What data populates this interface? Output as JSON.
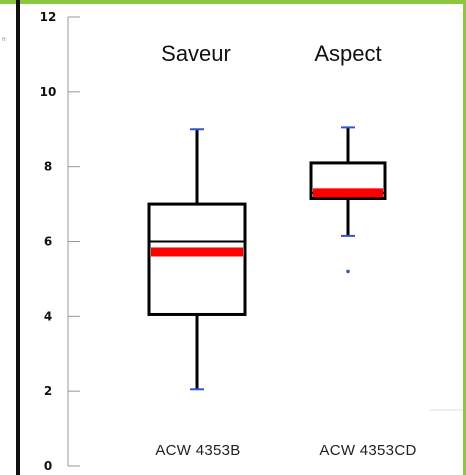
{
  "colors": {
    "frame_accent": "#8dc63f",
    "box_stroke": "#000000",
    "median_marker": "#ff0000",
    "whisker_cap": "#3355cc",
    "outlier": "#3355cc"
  },
  "corner_mark": "ft",
  "chart_data": {
    "type": "box",
    "ylim": [
      0,
      12
    ],
    "y_ticks": [
      "0",
      "2",
      "4",
      "6",
      "8",
      "10",
      "12"
    ],
    "categories": [
      "ACW 4353B",
      "ACW 4353CD"
    ],
    "annotations": [
      "Saveur",
      "Aspect"
    ],
    "grid": false,
    "boxes": [
      {
        "category": "ACW 4353B",
        "whisker_low": 2.05,
        "q1": 4.05,
        "median": 6.0,
        "q3": 7.0,
        "whisker_high": 9.0,
        "highlight": 5.72,
        "outliers": []
      },
      {
        "category": "ACW 4353CD",
        "whisker_low": 6.15,
        "q1": 7.15,
        "median": 7.3,
        "q3": 8.1,
        "whisker_high": 9.05,
        "highlight": 7.3,
        "outliers": [
          5.2
        ]
      }
    ]
  }
}
